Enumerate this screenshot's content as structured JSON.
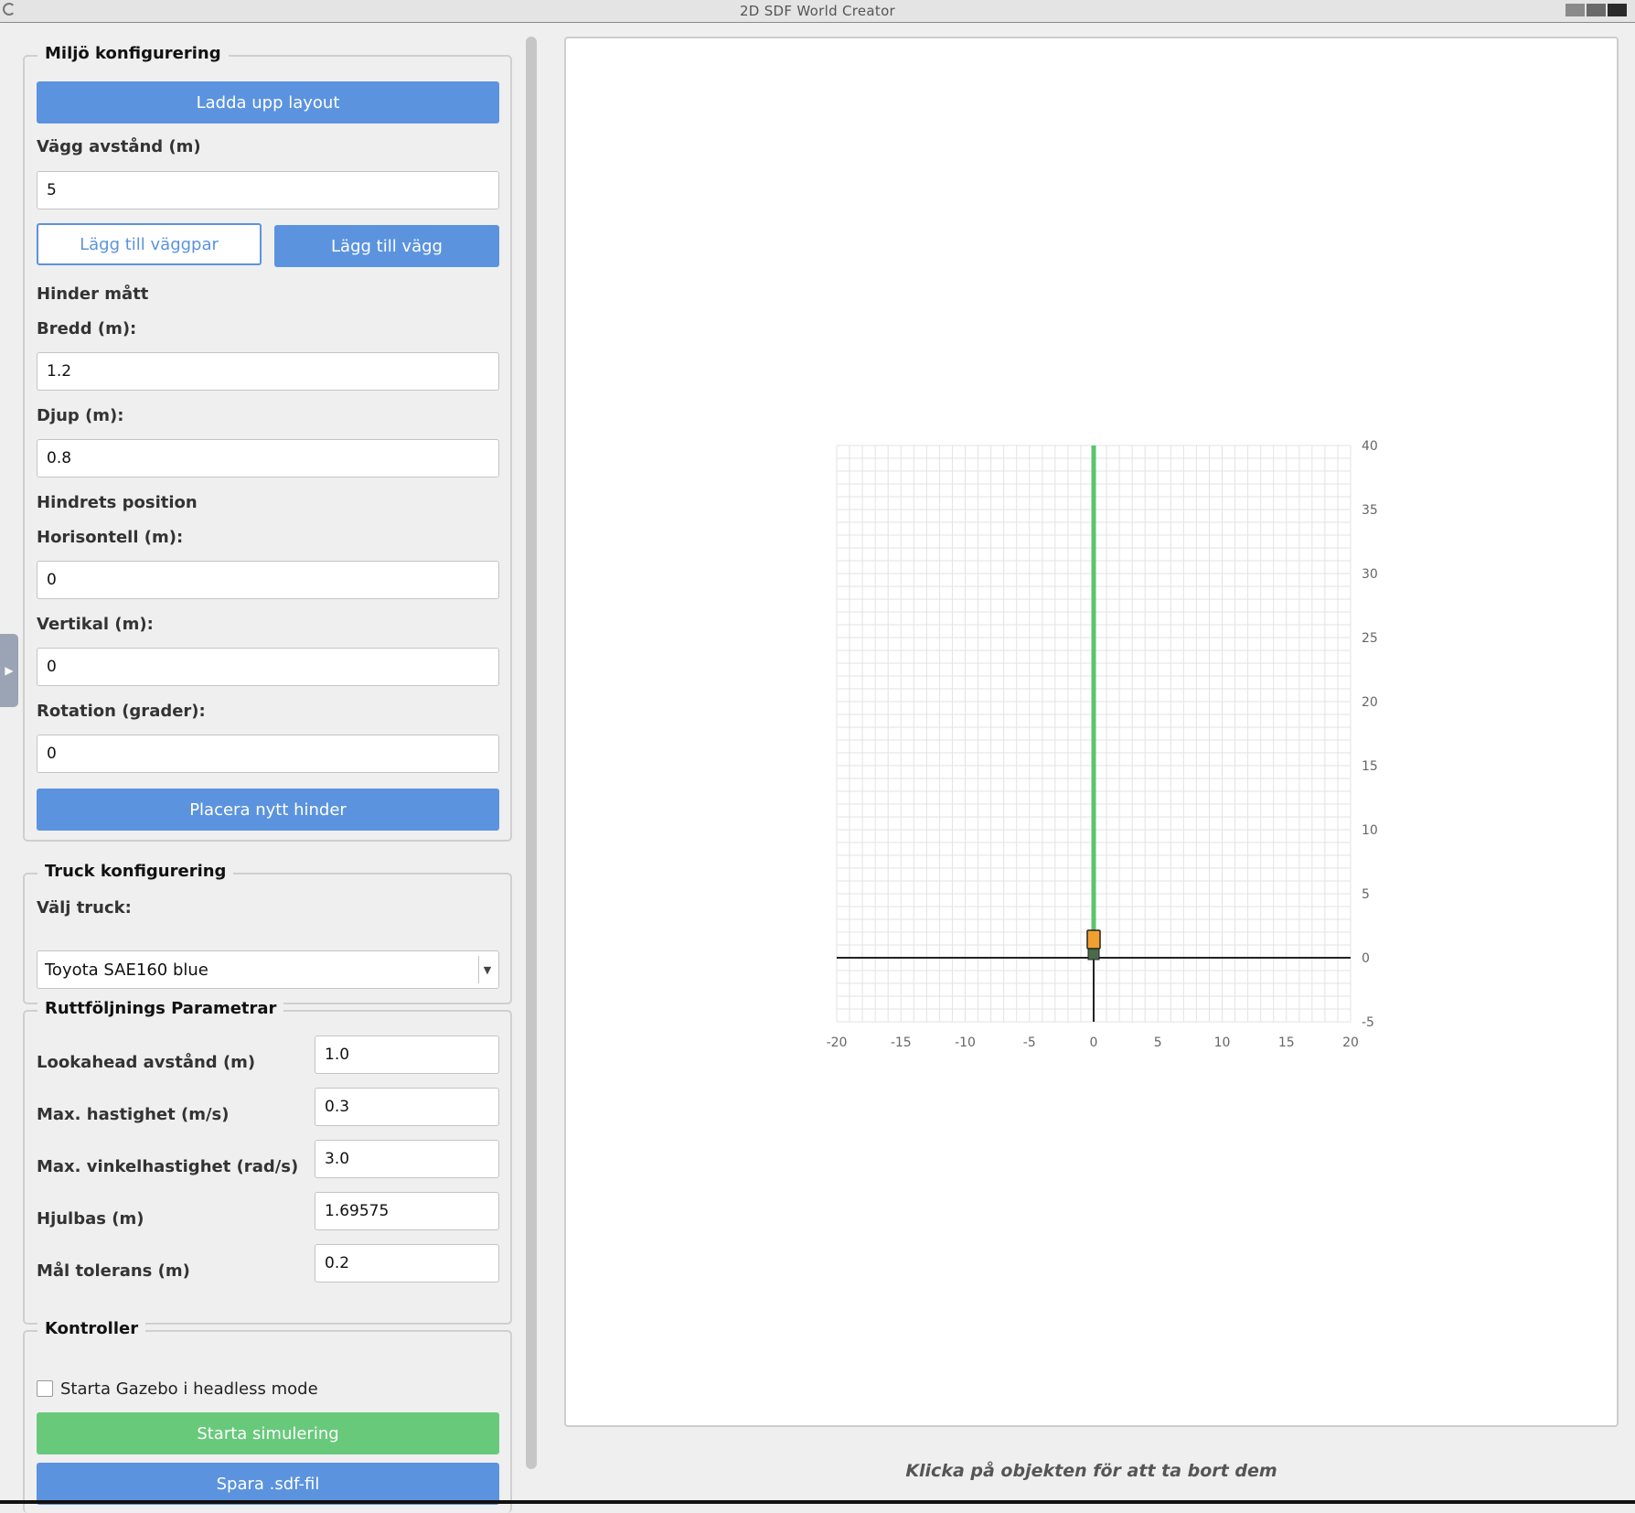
{
  "window": {
    "title": "2D SDF World Creator"
  },
  "environment": {
    "title": "Miljö konfigurering",
    "upload_label": "Ladda upp layout",
    "wall_distance_label": "Vägg avstånd (m)",
    "wall_distance_value": "5",
    "add_wall_pair_label": "Lägg till väggpar",
    "add_wall_label": "Lägg till vägg",
    "obstacle_dims_label": "Hinder mått",
    "width_label": "Bredd (m):",
    "width_value": "1.2",
    "depth_label": "Djup (m):",
    "depth_value": "0.8",
    "obstacle_pos_label": "Hindrets position",
    "horizontal_label": "Horisontell (m):",
    "horizontal_value": "0",
    "vertical_label": "Vertikal (m):",
    "vertical_value": "0",
    "rotation_label": "Rotation (grader):",
    "rotation_value": "0",
    "place_obstacle_label": "Placera nytt hinder"
  },
  "truck": {
    "title": "Truck konfigurering",
    "select_label": "Välj truck:",
    "selected": "Toyota SAE160 blue"
  },
  "path_params": {
    "title": "Ruttföljnings Parametrar",
    "rows": [
      {
        "label": "Lookahead avstånd (m)",
        "value": "1.0"
      },
      {
        "label": "Max. hastighet (m/s)",
        "value": "0.3"
      },
      {
        "label": "Max. vinkelhastighet (rad/s)",
        "value": "3.0"
      },
      {
        "label": "Hjulbas (m)",
        "value": "1.69575"
      },
      {
        "label": "Mål tolerans (m)",
        "value": "0.2"
      }
    ]
  },
  "controls": {
    "title": "Kontroller",
    "headless_label": "Starta Gazebo i headless mode",
    "headless_checked": false,
    "start_label": "Starta simulering",
    "save_label": "Spara .sdf-fil"
  },
  "hint": "Klicka på objekten för att ta bort dem",
  "colors": {
    "accent": "#5b93df",
    "start": "#68c97b",
    "path": "#5cc46c",
    "truck": "#f0a030"
  },
  "chart_data": {
    "type": "line",
    "title": "",
    "xlabel": "",
    "ylabel": "",
    "xlim": [
      -20,
      20
    ],
    "ylim": [
      -5,
      40
    ],
    "x_ticks": [
      "-20",
      "-15",
      "-10",
      "-5",
      "0",
      "5",
      "10",
      "15",
      "20"
    ],
    "y_ticks": [
      "-5",
      "0",
      "5",
      "10",
      "15",
      "20",
      "25",
      "30",
      "35",
      "40"
    ],
    "grid": true,
    "series": [
      {
        "x": [
          0,
          0
        ],
        "y": [
          0,
          40
        ]
      }
    ],
    "truck_position": {
      "x": 0,
      "y": 0,
      "heading_deg": 90
    }
  }
}
